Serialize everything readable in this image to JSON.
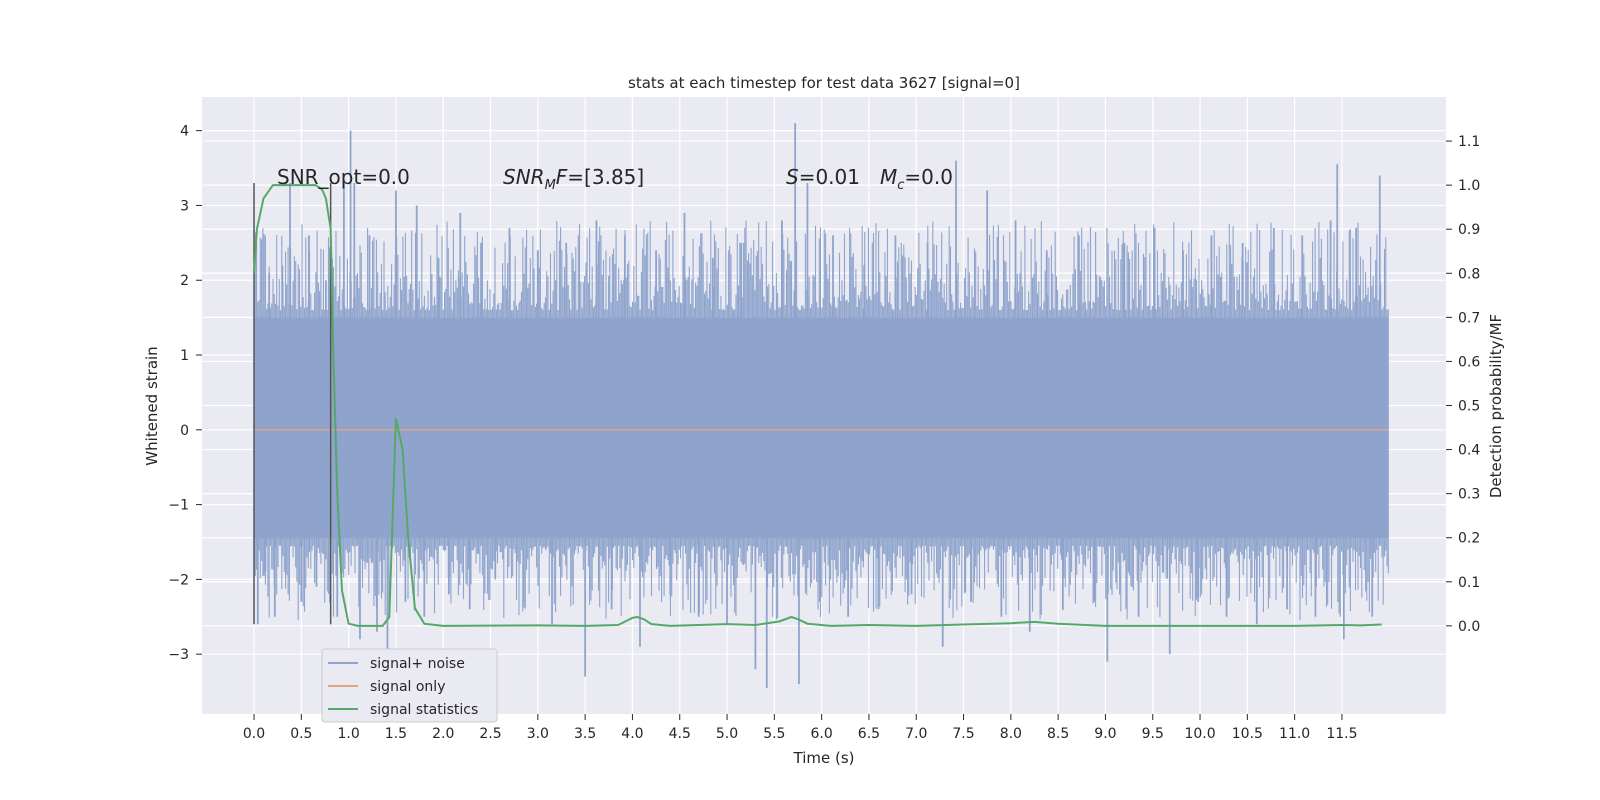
{
  "chart_data": {
    "type": "line",
    "title": "stats at each timestep for test data 3627 [signal=0]",
    "xlabel": "Time (s)",
    "ylabel": "Whitened strain",
    "ylabel_right": "Detection probability/MF",
    "xlim": [
      -0.55,
      12.6
    ],
    "ylim": [
      -3.8,
      4.45
    ],
    "ylim_right": [
      -0.2,
      1.2
    ],
    "x_ticks": [
      "0.0",
      "0.5",
      "1.0",
      "1.5",
      "2.0",
      "2.5",
      "3.0",
      "3.5",
      "4.0",
      "4.5",
      "5.0",
      "5.5",
      "6.0",
      "6.5",
      "7.0",
      "7.5",
      "8.0",
      "8.5",
      "9.0",
      "9.5",
      "10.0",
      "10.5",
      "11.0",
      "11.5"
    ],
    "y_ticks_left": [
      "−3",
      "−2",
      "−1",
      "0",
      "1",
      "2",
      "3",
      "4"
    ],
    "y_ticks_right": [
      "0.0",
      "0.1",
      "0.2",
      "0.3",
      "0.4",
      "0.5",
      "0.6",
      "0.7",
      "0.8",
      "0.9",
      "1.0",
      "1.1"
    ],
    "grid": true,
    "legend_position": "lower-left",
    "colors": {
      "background": "#eaeaf2",
      "grid": "#ffffff",
      "noise": "#8fa4cc",
      "signal": "#e1a684",
      "statistics": "#55a868",
      "marker": "#555555"
    },
    "annotations": [
      {
        "text": "SNR_opt=0.0"
      },
      {
        "text": "SNR_MF=[3.85]"
      },
      {
        "text": "S=0.01"
      },
      {
        "text": "M_c=0.0"
      }
    ],
    "vertical_markers_x": [
      0.0,
      0.81
    ],
    "series": [
      {
        "name": "signal+ noise",
        "x_range": [
          0.0,
          11.99
        ],
        "band_y": [
          -1.45,
          1.5
        ],
        "spikes": [
          {
            "x": 0.04,
            "y": -2.6
          },
          {
            "x": 0.12,
            "y": -1.9
          },
          {
            "x": 0.16,
            "y": 2.1
          },
          {
            "x": 0.22,
            "y": -2.5
          },
          {
            "x": 0.3,
            "y": 2.2
          },
          {
            "x": 0.38,
            "y": 3.3
          },
          {
            "x": 0.5,
            "y": -2.3
          },
          {
            "x": 0.58,
            "y": 2.6
          },
          {
            "x": 0.66,
            "y": -2.1
          },
          {
            "x": 0.76,
            "y": 2.0
          },
          {
            "x": 0.88,
            "y": -2.5
          },
          {
            "x": 0.95,
            "y": 3.3
          },
          {
            "x": 1.02,
            "y": 4.0
          },
          {
            "x": 1.06,
            "y": 3.3
          },
          {
            "x": 1.12,
            "y": -2.8
          },
          {
            "x": 1.22,
            "y": 2.6
          },
          {
            "x": 1.3,
            "y": -2.7
          },
          {
            "x": 1.41,
            "y": -3.1
          },
          {
            "x": 1.5,
            "y": 3.2
          },
          {
            "x": 1.6,
            "y": -2.3
          },
          {
            "x": 1.72,
            "y": 3.0
          },
          {
            "x": 1.8,
            "y": -2.5
          },
          {
            "x": 1.95,
            "y": 2.3
          },
          {
            "x": 2.06,
            "y": -2.2
          },
          {
            "x": 2.18,
            "y": 2.9
          },
          {
            "x": 2.28,
            "y": -2.4
          },
          {
            "x": 2.4,
            "y": 2.5
          },
          {
            "x": 2.55,
            "y": -2.0
          },
          {
            "x": 2.7,
            "y": 2.7
          },
          {
            "x": 2.85,
            "y": -2.3
          },
          {
            "x": 3.0,
            "y": 2.4
          },
          {
            "x": 3.15,
            "y": -2.6
          },
          {
            "x": 3.3,
            "y": 2.5
          },
          {
            "x": 3.5,
            "y": -3.3
          },
          {
            "x": 3.62,
            "y": 2.8
          },
          {
            "x": 3.78,
            "y": -2.4
          },
          {
            "x": 3.92,
            "y": 2.6
          },
          {
            "x": 4.08,
            "y": -2.9
          },
          {
            "x": 4.25,
            "y": 2.4
          },
          {
            "x": 4.4,
            "y": -2.2
          },
          {
            "x": 4.55,
            "y": 2.9
          },
          {
            "x": 4.7,
            "y": -2.5
          },
          {
            "x": 4.85,
            "y": 2.3
          },
          {
            "x": 5.0,
            "y": -2.6
          },
          {
            "x": 5.15,
            "y": 2.5
          },
          {
            "x": 5.3,
            "y": -3.2
          },
          {
            "x": 5.42,
            "y": -3.45
          },
          {
            "x": 5.58,
            "y": 2.8
          },
          {
            "x": 5.72,
            "y": 4.1
          },
          {
            "x": 5.76,
            "y": -3.4
          },
          {
            "x": 5.85,
            "y": 3.3
          },
          {
            "x": 5.98,
            "y": -2.3
          },
          {
            "x": 6.12,
            "y": 2.6
          },
          {
            "x": 6.28,
            "y": -2.5
          },
          {
            "x": 6.45,
            "y": 2.2
          },
          {
            "x": 6.6,
            "y": -2.4
          },
          {
            "x": 6.78,
            "y": 2.6
          },
          {
            "x": 6.95,
            "y": -2.2
          },
          {
            "x": 7.12,
            "y": 2.5
          },
          {
            "x": 7.28,
            "y": -2.9
          },
          {
            "x": 7.42,
            "y": 3.6
          },
          {
            "x": 7.58,
            "y": -2.3
          },
          {
            "x": 7.75,
            "y": 3.2
          },
          {
            "x": 7.9,
            "y": -2.5
          },
          {
            "x": 8.05,
            "y": 2.8
          },
          {
            "x": 8.2,
            "y": -2.7
          },
          {
            "x": 8.38,
            "y": 2.4
          },
          {
            "x": 8.55,
            "y": -2.4
          },
          {
            "x": 8.72,
            "y": 2.6
          },
          {
            "x": 8.88,
            "y": -2.3
          },
          {
            "x": 9.02,
            "y": -3.1
          },
          {
            "x": 9.2,
            "y": 2.5
          },
          {
            "x": 9.35,
            "y": -2.5
          },
          {
            "x": 9.52,
            "y": 2.7
          },
          {
            "x": 9.68,
            "y": -3.0
          },
          {
            "x": 9.82,
            "y": 2.4
          },
          {
            "x": 9.98,
            "y": -2.3
          },
          {
            "x": 10.12,
            "y": 2.6
          },
          {
            "x": 10.28,
            "y": -2.5
          },
          {
            "x": 10.45,
            "y": 2.5
          },
          {
            "x": 10.6,
            "y": -2.6
          },
          {
            "x": 10.78,
            "y": 2.7
          },
          {
            "x": 10.92,
            "y": -2.4
          },
          {
            "x": 11.08,
            "y": 2.6
          },
          {
            "x": 11.22,
            "y": -2.5
          },
          {
            "x": 11.38,
            "y": 2.8
          },
          {
            "x": 11.45,
            "y": 3.55
          },
          {
            "x": 11.52,
            "y": -2.8
          },
          {
            "x": 11.65,
            "y": 2.7
          },
          {
            "x": 11.82,
            "y": -2.5
          },
          {
            "x": 11.9,
            "y": 3.4
          }
        ]
      },
      {
        "name": "signal only",
        "x": [
          0.0,
          11.99
        ],
        "y": [
          0.0,
          0.0
        ]
      },
      {
        "name": "signal statistics",
        "axis": "right",
        "x": [
          0.0,
          0.03,
          0.1,
          0.2,
          0.3,
          0.5,
          0.65,
          0.72,
          0.76,
          0.81,
          0.84,
          0.88,
          0.93,
          1.0,
          1.1,
          1.2,
          1.3,
          1.36,
          1.43,
          1.5,
          1.57,
          1.63,
          1.7,
          1.8,
          2.0,
          3.0,
          3.5,
          3.85,
          4.0,
          4.05,
          4.12,
          4.2,
          4.4,
          5.0,
          5.3,
          5.55,
          5.68,
          5.75,
          5.85,
          6.1,
          6.5,
          7.0,
          7.5,
          8.0,
          8.25,
          8.5,
          9.0,
          10.0,
          11.0,
          11.5,
          11.7,
          11.92
        ],
        "y": [
          0.8,
          0.9,
          0.97,
          1.0,
          1.0,
          1.0,
          1.0,
          0.99,
          0.97,
          0.9,
          0.6,
          0.3,
          0.08,
          0.005,
          0.0,
          0.0,
          0.0,
          0.0,
          0.02,
          0.47,
          0.4,
          0.2,
          0.04,
          0.005,
          0.0,
          0.001,
          0.0,
          0.002,
          0.018,
          0.02,
          0.015,
          0.004,
          0.0,
          0.004,
          0.002,
          0.01,
          0.02,
          0.015,
          0.005,
          0.0,
          0.002,
          0.0,
          0.003,
          0.006,
          0.009,
          0.005,
          0.0,
          0.0,
          0.0,
          0.002,
          0.001,
          0.003
        ]
      }
    ]
  }
}
